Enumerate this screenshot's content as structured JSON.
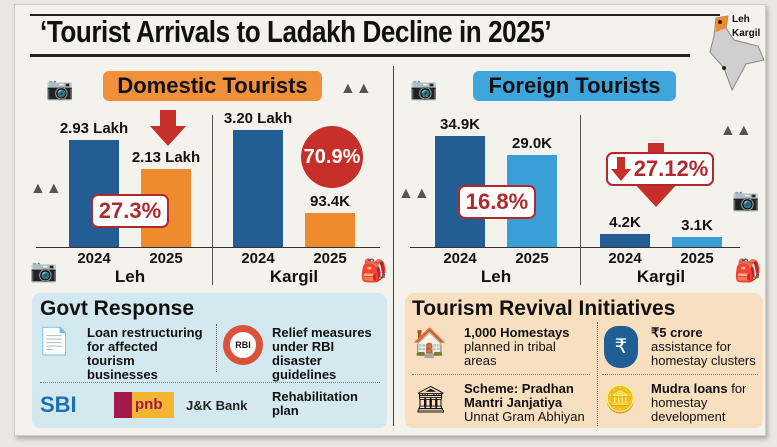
{
  "title": "‘Tourist Arrivals to Ladakh Decline in 2025’",
  "map": {
    "labels": [
      "Leh",
      "Kargil"
    ]
  },
  "chart_data": [
    {
      "type": "bar",
      "title": "Domestic Tourists",
      "unit": "Lakh",
      "color_2024": "#225e93",
      "color_2025": "#ee8b2e",
      "groups": [
        {
          "city": "Leh",
          "categories": [
            "2024",
            "2025"
          ],
          "values": [
            2.93,
            2.13
          ],
          "labels": [
            "2.93 Lakh",
            "2.13 Lakh"
          ],
          "decline": "27.3%"
        },
        {
          "city": "Kargil",
          "categories": [
            "2024",
            "2025"
          ],
          "values": [
            3.2,
            0.934
          ],
          "labels": [
            "3.20 Lakh",
            "93.4K"
          ],
          "decline": "70.9%"
        }
      ]
    },
    {
      "type": "bar",
      "title": "Foreign Tourists",
      "unit": "K",
      "color_2024": "#225e93",
      "color_2025": "#3a9fd6",
      "groups": [
        {
          "city": "Leh",
          "categories": [
            "2024",
            "2025"
          ],
          "values": [
            34.9,
            29.0
          ],
          "labels": [
            "34.9K",
            "29.0K"
          ],
          "decline": "16.8%"
        },
        {
          "city": "Kargil",
          "categories": [
            "2024",
            "2025"
          ],
          "values": [
            4.2,
            3.1
          ],
          "labels": [
            "4.2K",
            "3.1K"
          ],
          "decline": "27.12%"
        }
      ]
    }
  ],
  "govt": {
    "title": "Govt Response",
    "items": [
      "Loan restructuring for affected tourism businesses",
      "Relief measures under RBI disaster guidelines",
      "Rehabilitation plan"
    ],
    "rbi": "RBI",
    "banks": [
      "SBI",
      "pnb",
      "J&K Bank"
    ]
  },
  "revival": {
    "title": "Tourism Revival Initiatives",
    "items": [
      {
        "bold": "1,000 Homestays",
        "rest": "planned in tribal areas"
      },
      {
        "bold": "₹5 crore",
        "rest": "assistance for homestay clusters"
      },
      {
        "bold": "Scheme: Pradhan Mantri Janjatiya",
        "rest": "Unnat Gram Abhiyan"
      },
      {
        "bold": "Mudra loans",
        "rest": "for homestay development"
      }
    ]
  }
}
